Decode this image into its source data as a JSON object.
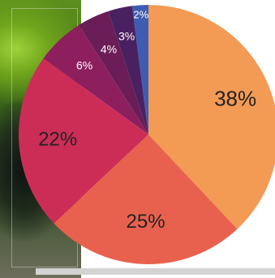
{
  "chart_data": {
    "type": "pie",
    "slices": [
      {
        "label": "38%",
        "value": 38,
        "color": "#f39a55"
      },
      {
        "label": "25%",
        "value": 25,
        "color": "#e8614f"
      },
      {
        "label": "22%",
        "value": 22,
        "color": "#cc2d57"
      },
      {
        "label": "6%",
        "value": 6,
        "color": "#8e1f5e"
      },
      {
        "label": "4%",
        "value": 4,
        "color": "#6a1d57"
      },
      {
        "label": "3%",
        "value": 3,
        "color": "#4a2160"
      },
      {
        "label": "2%",
        "value": 2,
        "color": "#3f5cb3"
      }
    ],
    "start": "top",
    "direction": "clockwise",
    "legend": "none"
  }
}
